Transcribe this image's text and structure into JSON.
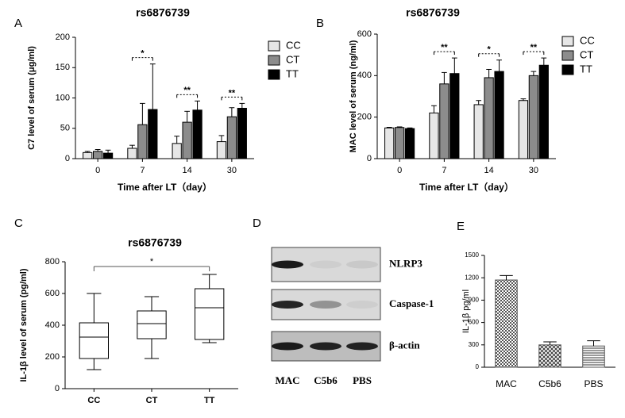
{
  "chart_data": [
    {
      "type": "grouped_bar",
      "panel": "A",
      "title": "rs6876739",
      "ylabel": "C7 level of serum (μg/ml)",
      "xlabel": "Time after LT（day）",
      "categories": [
        "0",
        "7",
        "14",
        "30"
      ],
      "series": [
        {
          "name": "CC",
          "color": "#e6e6e6",
          "values": [
            10,
            17,
            25,
            28
          ],
          "errors": [
            2,
            5,
            12,
            10
          ]
        },
        {
          "name": "CT",
          "color": "#8c8c8c",
          "values": [
            12,
            56,
            60,
            69
          ],
          "errors": [
            3,
            35,
            18,
            15
          ]
        },
        {
          "name": "TT",
          "color": "#000000",
          "values": [
            9,
            81,
            80,
            83
          ],
          "errors": [
            5,
            75,
            15,
            8
          ]
        }
      ],
      "annotations": [
        "*",
        "**",
        "**"
      ],
      "ylim": [
        0,
        200
      ],
      "yticks": [
        0,
        50,
        100,
        150,
        200
      ]
    },
    {
      "type": "grouped_bar",
      "panel": "B",
      "title": "rs6876739",
      "ylabel": "MAC level of serum (ng/ml)",
      "xlabel": "Time after LT（day）",
      "categories": [
        "0",
        "7",
        "14",
        "30"
      ],
      "series": [
        {
          "name": "CC",
          "color": "#e6e6e6",
          "values": [
            148,
            220,
            260,
            280
          ],
          "errors": [
            3,
            35,
            20,
            8
          ]
        },
        {
          "name": "CT",
          "color": "#8c8c8c",
          "values": [
            150,
            360,
            390,
            400
          ],
          "errors": [
            3,
            55,
            40,
            20
          ]
        },
        {
          "name": "TT",
          "color": "#000000",
          "values": [
            145,
            410,
            420,
            450
          ],
          "errors": [
            3,
            75,
            55,
            35
          ]
        }
      ],
      "annotations": [
        "**",
        "*",
        "**"
      ],
      "ylim": [
        0,
        600
      ],
      "yticks": [
        0,
        200,
        400,
        600
      ]
    },
    {
      "type": "box",
      "panel": "C",
      "title": "rs6876739",
      "ylabel": "IL-1β level of serum (pg/ml)",
      "categories": [
        "CC",
        "CT",
        "TT"
      ],
      "boxes": [
        {
          "min": 120,
          "q1": 190,
          "median": 325,
          "q3": 415,
          "max": 600
        },
        {
          "min": 190,
          "q1": 315,
          "median": 410,
          "q3": 490,
          "max": 580
        },
        {
          "min": 290,
          "q1": 310,
          "median": 510,
          "q3": 630,
          "max": 720
        }
      ],
      "annotations": [
        "*"
      ],
      "ylim": [
        0,
        800
      ],
      "yticks": [
        0,
        200,
        400,
        600,
        800
      ]
    },
    {
      "type": "blot",
      "panel": "D",
      "rows": [
        "NLRP3",
        "Caspase-1",
        "β-actin"
      ],
      "lanes": [
        "MAC",
        "C5b6",
        "PBS"
      ]
    },
    {
      "type": "bar",
      "panel": "E",
      "ylabel": "IL-1β pg/ml",
      "categories": [
        "MAC",
        "C5b6",
        "PBS"
      ],
      "values": [
        1170,
        300,
        285
      ],
      "errors": [
        60,
        40,
        70
      ],
      "color": "#555555",
      "ylim": [
        0,
        1500
      ],
      "yticks": [
        0,
        300,
        600,
        900,
        1200,
        1500
      ]
    }
  ]
}
